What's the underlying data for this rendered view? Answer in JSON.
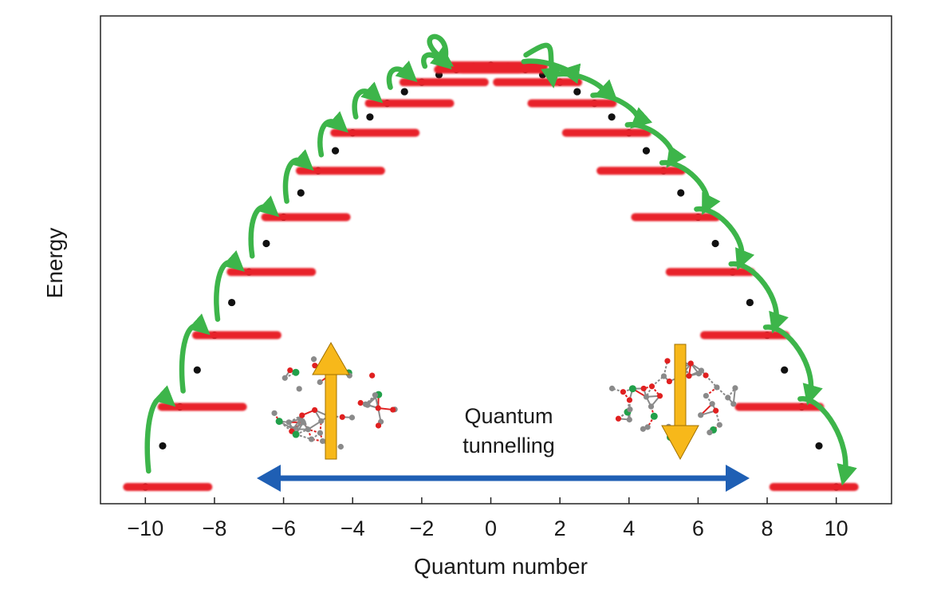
{
  "axes": {
    "xlabel": "Quantum number",
    "ylabel": "Energy",
    "xlim": [
      -11.3,
      11.6
    ],
    "x_ticks": [
      -10,
      -8,
      -6,
      -4,
      -2,
      0,
      2,
      4,
      6,
      8,
      10
    ],
    "x_tick_labels": [
      "−10",
      "−8",
      "−6",
      "−4",
      "−2",
      "0",
      "2",
      "4",
      "6",
      "8",
      "10"
    ]
  },
  "annotation": {
    "line1": "Quantum",
    "line2": "tunnelling"
  },
  "levels_m": [
    -10,
    -9,
    -8,
    -7,
    -6,
    -5,
    -4,
    -3,
    -2,
    -1,
    0,
    1,
    2,
    3,
    4,
    5,
    6,
    7,
    8,
    9,
    10
  ],
  "colors": {
    "level": "#e8202a",
    "arrow": "#3db54a",
    "tunnel_arrow": "#1f5fb4",
    "spin_arrow": "#f7b81a",
    "dot": "#111111",
    "frame": "#222222",
    "atom_oxygen": "#e02020",
    "atom_carbon": "#8a8a8a",
    "atom_mn": "#22a04a"
  },
  "icons": {
    "left_spin": "spin-up-arrow-icon",
    "right_spin": "spin-down-arrow-icon",
    "tunnel": "double-headed-arrow-icon",
    "molecule": "mn12-molecule-icon"
  }
}
